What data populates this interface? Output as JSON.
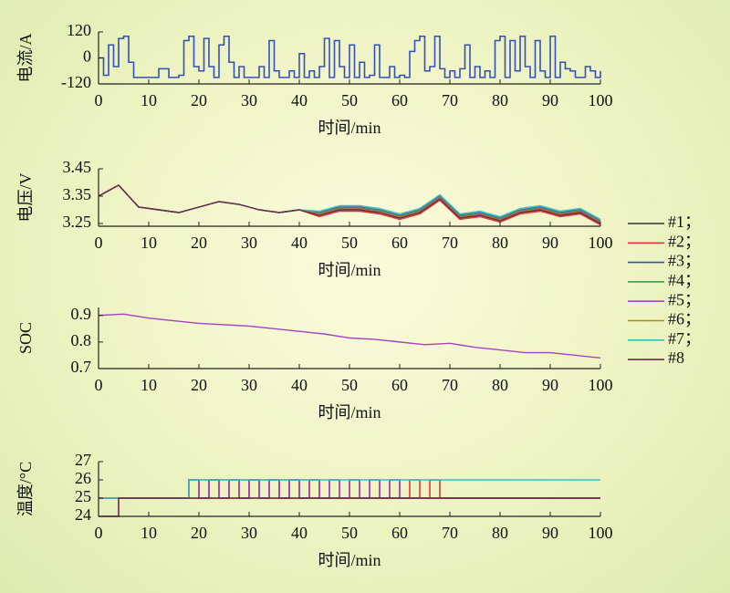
{
  "chart_data": [
    {
      "type": "line",
      "step": true,
      "ylabel": "电流/A",
      "xlabel": "时间/min",
      "xlim": [
        0,
        100
      ],
      "xticks": [
        0,
        10,
        20,
        30,
        40,
        50,
        60,
        70,
        80,
        90,
        100
      ],
      "ylim": [
        -120,
        120
      ],
      "yticks": [
        -120,
        0,
        120
      ],
      "x": [
        0,
        1,
        2,
        3,
        4,
        5,
        6,
        7,
        8,
        9,
        10,
        11,
        12,
        13,
        14,
        15,
        16,
        17,
        18,
        19,
        20,
        21,
        22,
        23,
        24,
        25,
        26,
        27,
        28,
        29,
        30,
        31,
        32,
        33,
        34,
        35,
        36,
        37,
        38,
        39,
        40,
        41,
        42,
        43,
        44,
        45,
        46,
        47,
        48,
        49,
        50,
        51,
        52,
        53,
        54,
        55,
        56,
        57,
        58,
        59,
        60,
        61,
        62,
        63,
        64,
        65,
        66,
        67,
        68,
        69,
        70,
        71,
        72,
        73,
        74,
        75,
        76,
        77,
        78,
        79,
        80,
        81,
        82,
        83,
        84,
        85,
        86,
        87,
        88,
        89,
        90,
        91,
        92,
        93,
        94,
        95,
        96,
        97,
        98,
        99,
        100
      ],
      "series": [
        {
          "color": "#3450b8",
          "values": [
            0,
            -80,
            60,
            -40,
            90,
            100,
            -20,
            -90,
            -90,
            -90,
            -90,
            -90,
            -50,
            -50,
            -90,
            -90,
            -80,
            80,
            100,
            -40,
            -60,
            90,
            -40,
            -90,
            60,
            100,
            -20,
            -90,
            -40,
            -90,
            -90,
            -90,
            -40,
            -90,
            80,
            -60,
            -90,
            -90,
            -60,
            -90,
            20,
            -90,
            -60,
            -90,
            -40,
            90,
            -90,
            80,
            -40,
            -90,
            60,
            -90,
            -20,
            -90,
            -80,
            60,
            -90,
            -90,
            -40,
            -90,
            -80,
            -90,
            30,
            80,
            100,
            -60,
            -40,
            100,
            -50,
            -90,
            -60,
            -90,
            -50,
            60,
            -90,
            -40,
            -90,
            -60,
            -90,
            80,
            100,
            -90,
            80,
            -60,
            100,
            -40,
            -90,
            80,
            -60,
            -90,
            100,
            -90,
            -20,
            -50,
            -60,
            -90,
            -90,
            -40,
            -60,
            -90,
            -60
          ]
        }
      ]
    },
    {
      "type": "line",
      "ylabel": "电压/V",
      "xlabel": "时间/min",
      "xlim": [
        0,
        100
      ],
      "xticks": [
        0,
        10,
        20,
        30,
        40,
        50,
        60,
        70,
        80,
        90,
        100
      ],
      "ylim": [
        3.24,
        3.45
      ],
      "yticks": [
        3.25,
        3.35,
        3.45
      ],
      "x": [
        0,
        4,
        8,
        12,
        16,
        20,
        24,
        28,
        32,
        36,
        40,
        44,
        48,
        52,
        56,
        60,
        64,
        68,
        72,
        76,
        80,
        84,
        88,
        92,
        96,
        100
      ],
      "series": [
        {
          "name": "#1；",
          "color": "#333333",
          "values": [
            3.35,
            3.39,
            3.31,
            3.3,
            3.29,
            3.31,
            3.33,
            3.32,
            3.3,
            3.29,
            3.3,
            3.28,
            3.3,
            3.3,
            3.29,
            3.27,
            3.29,
            3.34,
            3.27,
            3.28,
            3.26,
            3.29,
            3.3,
            3.28,
            3.29,
            3.25
          ]
        },
        {
          "name": "#2；",
          "color": "#e03a3a",
          "values": [
            3.35,
            3.39,
            3.31,
            3.3,
            3.29,
            3.31,
            3.33,
            3.32,
            3.3,
            3.29,
            3.3,
            3.275,
            3.295,
            3.295,
            3.285,
            3.265,
            3.285,
            3.335,
            3.265,
            3.275,
            3.255,
            3.285,
            3.295,
            3.275,
            3.285,
            3.245
          ]
        },
        {
          "name": "#3；",
          "color": "#3450b8",
          "values": [
            3.35,
            3.39,
            3.31,
            3.3,
            3.29,
            3.31,
            3.33,
            3.32,
            3.3,
            3.29,
            3.3,
            3.29,
            3.31,
            3.31,
            3.3,
            3.28,
            3.3,
            3.35,
            3.28,
            3.29,
            3.27,
            3.3,
            3.31,
            3.29,
            3.3,
            3.26
          ]
        },
        {
          "name": "#4；",
          "color": "#35a048",
          "values": [
            3.35,
            3.39,
            3.31,
            3.3,
            3.29,
            3.31,
            3.33,
            3.32,
            3.3,
            3.29,
            3.3,
            3.288,
            3.308,
            3.308,
            3.298,
            3.278,
            3.298,
            3.348,
            3.278,
            3.288,
            3.268,
            3.298,
            3.308,
            3.288,
            3.298,
            3.258
          ]
        },
        {
          "name": "#5；",
          "color": "#a444c4",
          "values": [
            3.35,
            3.39,
            3.31,
            3.3,
            3.29,
            3.31,
            3.33,
            3.32,
            3.3,
            3.29,
            3.3,
            3.285,
            3.305,
            3.305,
            3.295,
            3.275,
            3.295,
            3.345,
            3.275,
            3.285,
            3.265,
            3.295,
            3.305,
            3.285,
            3.295,
            3.255
          ]
        },
        {
          "name": "#6；",
          "color": "#a88c12",
          "values": [
            3.35,
            3.39,
            3.31,
            3.3,
            3.29,
            3.31,
            3.33,
            3.32,
            3.3,
            3.29,
            3.3,
            3.283,
            3.303,
            3.303,
            3.293,
            3.273,
            3.293,
            3.343,
            3.273,
            3.283,
            3.263,
            3.293,
            3.303,
            3.283,
            3.293,
            3.253
          ]
        },
        {
          "name": "#7；",
          "color": "#35c0c4",
          "values": [
            3.35,
            3.39,
            3.31,
            3.3,
            3.29,
            3.31,
            3.33,
            3.32,
            3.3,
            3.29,
            3.3,
            3.295,
            3.315,
            3.315,
            3.305,
            3.285,
            3.305,
            3.355,
            3.285,
            3.295,
            3.275,
            3.305,
            3.315,
            3.295,
            3.305,
            3.265
          ]
        },
        {
          "name": "#8",
          "color": "#6b2b4b",
          "values": [
            3.35,
            3.39,
            3.31,
            3.3,
            3.29,
            3.31,
            3.33,
            3.32,
            3.3,
            3.29,
            3.3,
            3.28,
            3.3,
            3.3,
            3.29,
            3.27,
            3.29,
            3.34,
            3.27,
            3.28,
            3.26,
            3.29,
            3.3,
            3.28,
            3.29,
            3.25
          ]
        }
      ]
    },
    {
      "type": "line",
      "ylabel": "SOC",
      "xlabel": "时间/min",
      "xlim": [
        0,
        100
      ],
      "xticks": [
        0,
        10,
        20,
        30,
        40,
        50,
        60,
        70,
        80,
        90,
        100
      ],
      "ylim": [
        0.7,
        0.93
      ],
      "yticks": [
        0.7,
        0.8,
        0.9
      ],
      "x": [
        0,
        5,
        10,
        15,
        20,
        25,
        30,
        35,
        40,
        45,
        50,
        55,
        60,
        65,
        70,
        75,
        80,
        85,
        90,
        95,
        100
      ],
      "series": [
        {
          "color": "#a444c4",
          "values": [
            0.9,
            0.905,
            0.89,
            0.88,
            0.87,
            0.865,
            0.86,
            0.85,
            0.84,
            0.83,
            0.815,
            0.81,
            0.8,
            0.79,
            0.795,
            0.78,
            0.77,
            0.76,
            0.76,
            0.75,
            0.74
          ]
        }
      ]
    },
    {
      "type": "line",
      "step": true,
      "ylabel": "温度/°C",
      "xlabel": "时间/min",
      "xlim": [
        0,
        100
      ],
      "xticks": [
        0,
        10,
        20,
        30,
        40,
        50,
        60,
        70,
        80,
        90,
        100
      ],
      "ylim": [
        24,
        27
      ],
      "yticks": [
        24,
        25,
        26,
        27
      ],
      "x": [
        0,
        2,
        4,
        6,
        8,
        10,
        12,
        14,
        16,
        18,
        20,
        22,
        24,
        26,
        28,
        30,
        32,
        34,
        36,
        38,
        40,
        42,
        44,
        46,
        48,
        50,
        52,
        54,
        56,
        58,
        60,
        62,
        64,
        66,
        68,
        70,
        72,
        74,
        76,
        78,
        80,
        82,
        84,
        86,
        88,
        90,
        92,
        94,
        96,
        98,
        100
      ],
      "series": [
        {
          "color": "#3450b8",
          "values": [
            25,
            25,
            25,
            25,
            25,
            25,
            25,
            25,
            25,
            26,
            25,
            26,
            25,
            26,
            25,
            26,
            25,
            26,
            25,
            26,
            25,
            25,
            25,
            25,
            25,
            25,
            25,
            25,
            25,
            25,
            25,
            25,
            25,
            25,
            25,
            25,
            25,
            25,
            25,
            25,
            25,
            25,
            25,
            25,
            25,
            25,
            25,
            25,
            25,
            25,
            25
          ]
        },
        {
          "color": "#35a048",
          "values": [
            25,
            25,
            25,
            25,
            25,
            25,
            25,
            25,
            25,
            26,
            25,
            26,
            25,
            26,
            25,
            26,
            25,
            26,
            25,
            26,
            25,
            26,
            25,
            25,
            25,
            25,
            25,
            25,
            25,
            25,
            25,
            25,
            25,
            25,
            25,
            25,
            25,
            25,
            25,
            25,
            25,
            25,
            25,
            25,
            25,
            25,
            25,
            25,
            25,
            25,
            25
          ]
        },
        {
          "color": "#a88c12",
          "values": [
            25,
            25,
            25,
            25,
            25,
            25,
            25,
            25,
            25,
            25,
            26,
            25,
            26,
            25,
            26,
            25,
            26,
            25,
            26,
            25,
            26,
            25,
            25,
            25,
            25,
            25,
            25,
            25,
            25,
            25,
            25,
            25,
            25,
            25,
            25,
            25,
            25,
            25,
            25,
            25,
            25,
            25,
            25,
            25,
            25,
            25,
            25,
            25,
            25,
            25,
            25
          ]
        },
        {
          "color": "#e03a3a",
          "values": [
            25,
            25,
            25,
            25,
            25,
            25,
            25,
            25,
            25,
            26,
            25,
            26,
            25,
            26,
            25,
            26,
            25,
            26,
            25,
            26,
            25,
            26,
            25,
            26,
            25,
            26,
            25,
            26,
            25,
            26,
            25,
            26,
            25,
            26,
            25,
            25,
            25,
            25,
            25,
            25,
            25,
            25,
            25,
            25,
            25,
            25,
            25,
            25,
            25,
            25,
            25
          ]
        },
        {
          "color": "#a444c4",
          "values": [
            25,
            25,
            25,
            25,
            25,
            25,
            25,
            25,
            25,
            26,
            25,
            26,
            25,
            26,
            25,
            26,
            25,
            26,
            25,
            26,
            25,
            26,
            25,
            26,
            25,
            26,
            25,
            26,
            25,
            26,
            25,
            25,
            25,
            25,
            25,
            25,
            25,
            25,
            25,
            25,
            25,
            25,
            25,
            25,
            25,
            25,
            25,
            25,
            25,
            25,
            25
          ]
        },
        {
          "color": "#35c0c4",
          "values": [
            25,
            25,
            25,
            25,
            25,
            25,
            25,
            25,
            25,
            26,
            26,
            26,
            26,
            26,
            26,
            26,
            26,
            26,
            26,
            26,
            26,
            26,
            26,
            26,
            26,
            26,
            26,
            26,
            26,
            26,
            26,
            26,
            26,
            26,
            26,
            26,
            26,
            26,
            26,
            26,
            26,
            26,
            26,
            26,
            26,
            26,
            26,
            26,
            26,
            26,
            26
          ]
        },
        {
          "color": "#6b2b4b",
          "values": [
            24,
            24,
            25,
            25,
            25,
            25,
            25,
            25,
            25,
            25,
            25,
            25,
            25,
            25,
            25,
            25,
            25,
            25,
            25,
            25,
            25,
            25,
            25,
            25,
            25,
            25,
            25,
            25,
            25,
            25,
            25,
            25,
            25,
            25,
            25,
            25,
            25,
            25,
            25,
            25,
            25,
            25,
            25,
            25,
            25,
            25,
            25,
            25,
            25,
            25,
            25
          ]
        }
      ]
    }
  ]
}
